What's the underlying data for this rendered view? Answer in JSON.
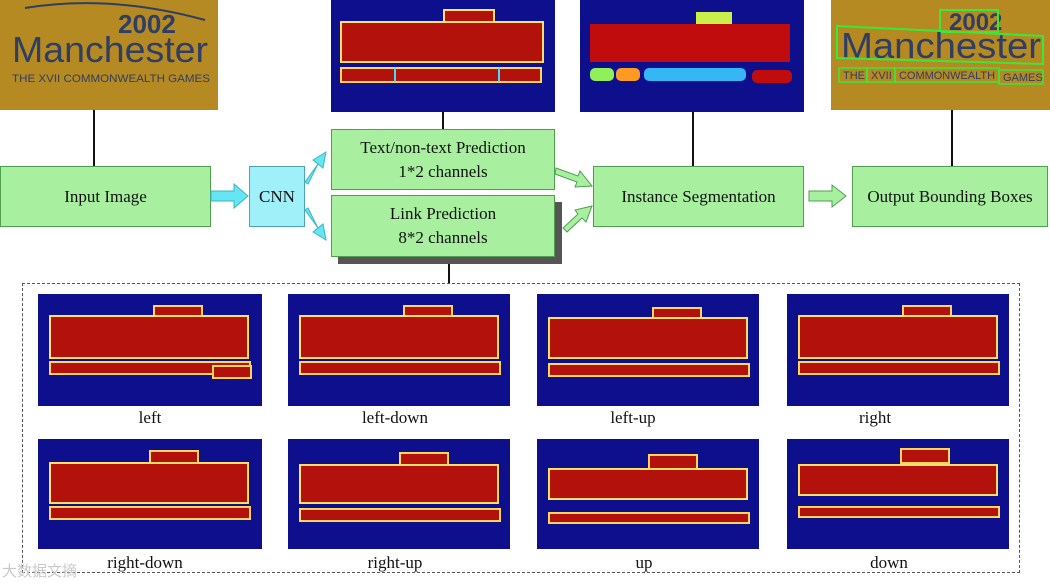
{
  "input_photo": {
    "year": "2002",
    "city": "Manchester",
    "subtitle": "THE XVII COMMONWEALTH GAMES"
  },
  "output_photo": {
    "year": "2002",
    "city": "Manchester",
    "words": [
      "THE",
      "XVII",
      "COMMONWEALTH",
      "GAMES"
    ]
  },
  "nodes": {
    "input_image": "Input Image",
    "cnn": "CNN",
    "text_pred_line1": "Text/non-text Prediction",
    "text_pred_line2": "1*2 channels",
    "link_pred_line1": "Link Prediction",
    "link_pred_line2": "8*2 channels",
    "instance_seg": "Instance Segmentation",
    "output_boxes": "Output Bounding Boxes"
  },
  "link_maps": [
    {
      "label": "left"
    },
    {
      "label": "left-down"
    },
    {
      "label": "left-up"
    },
    {
      "label": "right"
    },
    {
      "label": "right-down"
    },
    {
      "label": "right-up"
    },
    {
      "label": "up"
    },
    {
      "label": "down"
    }
  ],
  "watermark": "大数据文摘",
  "colors": {
    "box_fill": "#a8f0a0",
    "cnn_fill": "#9ff0f8",
    "arrow_fill": "#66e6f2",
    "map_bg": "#0d0f8c",
    "map_text": "#b3120c",
    "photo_bg": "#b58a22",
    "photo_text": "#2e3e64",
    "bbox_green": "#39e83a"
  }
}
